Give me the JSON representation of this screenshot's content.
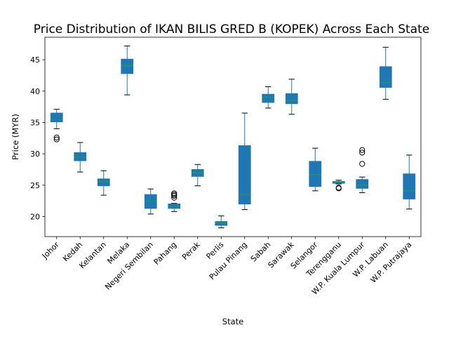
{
  "chart_data": {
    "type": "box",
    "title": "Price Distribution of IKAN BILIS GRED B (KOPEK) Across Each State",
    "xlabel": "State",
    "ylabel": "Price (MYR)",
    "ylim": [
      16.8,
      48.6
    ],
    "yticks": [
      20,
      25,
      30,
      35,
      40,
      45
    ],
    "grid": false,
    "box_color": "#1f77b4",
    "median_color": "#2ca02c",
    "categories": [
      "Johor",
      "Kedah",
      "Kelantan",
      "Melaka",
      "Negeri Sembilan",
      "Pahang",
      "Perak",
      "Perlis",
      "Pulau Pinang",
      "Sabah",
      "Sarawak",
      "Selangor",
      "Terengganu",
      "W.P. Kuala Lumpur",
      "W.P. Labuan",
      "W.P. Putrajaya"
    ],
    "boxes": [
      {
        "whislo": 34.0,
        "q1": 35.1,
        "med": 35.5,
        "q3": 36.5,
        "whishi": 37.1,
        "fliers": [
          32.3,
          32.6
        ]
      },
      {
        "whislo": 27.1,
        "q1": 28.9,
        "med": 29.5,
        "q3": 30.2,
        "whishi": 31.8,
        "fliers": []
      },
      {
        "whislo": 23.4,
        "q1": 24.9,
        "med": 25.6,
        "q3": 26.0,
        "whishi": 27.3,
        "fliers": []
      },
      {
        "whislo": 39.4,
        "q1": 42.8,
        "med": 44.1,
        "q3": 45.1,
        "whishi": 47.2,
        "fliers": []
      },
      {
        "whislo": 20.4,
        "q1": 21.3,
        "med": 22.5,
        "q3": 23.5,
        "whishi": 24.4,
        "fliers": []
      },
      {
        "whislo": 20.8,
        "q1": 21.3,
        "med": 21.6,
        "q3": 22.0,
        "whishi": 22.1,
        "fliers": [
          23.0,
          23.3,
          23.5,
          23.7
        ]
      },
      {
        "whislo": 24.9,
        "q1": 26.4,
        "med": 27.0,
        "q3": 27.5,
        "whishi": 28.3,
        "fliers": []
      },
      {
        "whislo": 18.2,
        "q1": 18.6,
        "med": 19.0,
        "q3": 19.2,
        "whishi": 20.1,
        "fliers": []
      },
      {
        "whislo": 21.1,
        "q1": 22.0,
        "med": 23.5,
        "q3": 31.3,
        "whishi": 36.5,
        "fliers": []
      },
      {
        "whislo": 37.3,
        "q1": 38.2,
        "med": 39.0,
        "q3": 39.5,
        "whishi": 40.7,
        "fliers": []
      },
      {
        "whislo": 36.3,
        "q1": 38.0,
        "med": 38.5,
        "q3": 39.6,
        "whishi": 41.9,
        "fliers": []
      },
      {
        "whislo": 24.1,
        "q1": 24.8,
        "med": 26.7,
        "q3": 28.8,
        "whishi": 30.9,
        "fliers": []
      },
      {
        "whislo": 25.2,
        "q1": 25.3,
        "med": 25.5,
        "q3": 25.6,
        "whishi": 25.8,
        "fliers": [
          24.5,
          24.6
        ]
      },
      {
        "whislo": 23.8,
        "q1": 24.5,
        "med": 25.0,
        "q3": 25.9,
        "whishi": 26.3,
        "fliers": [
          28.4,
          30.2,
          30.6
        ]
      },
      {
        "whislo": 38.7,
        "q1": 40.6,
        "med": 41.4,
        "q3": 43.9,
        "whishi": 47.0,
        "fliers": []
      },
      {
        "whislo": 21.2,
        "q1": 22.8,
        "med": 24.1,
        "q3": 26.8,
        "whishi": 29.8,
        "fliers": []
      }
    ]
  }
}
